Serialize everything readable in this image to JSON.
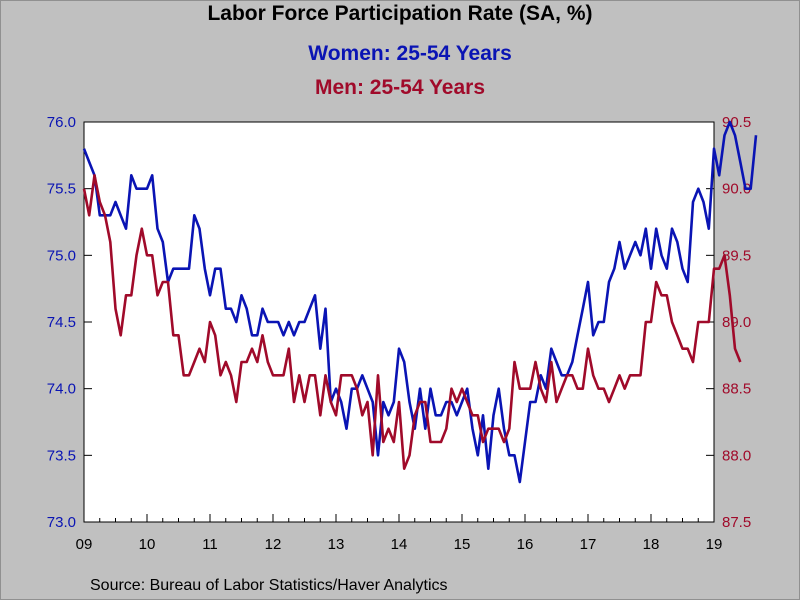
{
  "title": "Labor Force Participation Rate (SA, %)",
  "subtitle_women": "Women: 25-54 Years",
  "subtitle_men": "Men: 25-54 Years",
  "source": "Source:  Bureau of Labor Statistics/Haver Analytics",
  "colors": {
    "women": "#0a14b4",
    "men": "#a00a2a",
    "plot_bg": "#ffffff",
    "background": "#c0c0c0"
  },
  "chart_data": {
    "type": "line",
    "x_ticks": [
      "09",
      "10",
      "11",
      "12",
      "13",
      "14",
      "15",
      "16",
      "17",
      "18",
      "19"
    ],
    "x_range": [
      2009.0,
      2019.0
    ],
    "y_left": {
      "range": [
        73.0,
        76.0
      ],
      "ticks": [
        "73.0",
        "73.5",
        "74.0",
        "74.5",
        "75.0",
        "75.5",
        "76.0"
      ]
    },
    "y_right": {
      "range": [
        87.5,
        90.5
      ],
      "ticks": [
        "87.5",
        "88.0",
        "88.5",
        "89.0",
        "89.5",
        "90.0",
        "90.5"
      ]
    },
    "grid": false,
    "series": [
      {
        "name": "Women: 25-54 Years",
        "axis": "left",
        "start": "2009-01",
        "frequency": "monthly",
        "values": [
          75.8,
          75.7,
          75.6,
          75.3,
          75.3,
          75.3,
          75.4,
          75.3,
          75.2,
          75.6,
          75.5,
          75.5,
          75.5,
          75.6,
          75.2,
          75.1,
          74.8,
          74.9,
          74.9,
          74.9,
          74.9,
          75.3,
          75.2,
          74.9,
          74.7,
          74.9,
          74.9,
          74.6,
          74.6,
          74.5,
          74.7,
          74.6,
          74.4,
          74.4,
          74.6,
          74.5,
          74.5,
          74.5,
          74.4,
          74.5,
          74.4,
          74.5,
          74.5,
          74.6,
          74.7,
          74.3,
          74.6,
          73.9,
          74.0,
          73.9,
          73.7,
          74.0,
          74.0,
          74.1,
          74.0,
          73.9,
          73.5,
          73.9,
          73.8,
          73.9,
          74.3,
          74.2,
          73.9,
          73.7,
          74.0,
          73.7,
          74.0,
          73.8,
          73.8,
          73.9,
          73.9,
          73.8,
          73.9,
          74.0,
          73.7,
          73.5,
          73.8,
          73.4,
          73.8,
          74.0,
          73.7,
          73.5,
          73.5,
          73.3,
          73.6,
          73.9,
          73.9,
          74.1,
          74.0,
          74.3,
          74.2,
          74.1,
          74.1,
          74.2,
          74.4,
          74.6,
          74.8,
          74.4,
          74.5,
          74.5,
          74.8,
          74.9,
          75.1,
          74.9,
          75.0,
          75.1,
          75.0,
          75.2,
          74.9,
          75.2,
          75.0,
          74.9,
          75.2,
          75.1,
          74.9,
          74.8,
          75.4,
          75.5,
          75.4,
          75.2,
          75.8,
          75.6,
          75.9,
          76.0,
          75.9,
          75.7,
          75.5,
          75.5,
          75.9
        ]
      },
      {
        "name": "Men: 25-54 Years",
        "axis": "right",
        "start": "2009-01",
        "frequency": "monthly",
        "values": [
          90.0,
          89.8,
          90.1,
          89.9,
          89.8,
          89.6,
          89.1,
          88.9,
          89.2,
          89.2,
          89.5,
          89.7,
          89.5,
          89.5,
          89.2,
          89.3,
          89.3,
          88.9,
          88.9,
          88.6,
          88.6,
          88.7,
          88.8,
          88.7,
          89.0,
          88.9,
          88.6,
          88.7,
          88.6,
          88.4,
          88.7,
          88.7,
          88.8,
          88.7,
          88.9,
          88.7,
          88.6,
          88.6,
          88.6,
          88.8,
          88.4,
          88.6,
          88.4,
          88.6,
          88.6,
          88.3,
          88.6,
          88.4,
          88.3,
          88.6,
          88.6,
          88.6,
          88.5,
          88.3,
          88.4,
          88.0,
          88.6,
          88.1,
          88.2,
          88.1,
          88.4,
          87.9,
          88.0,
          88.3,
          88.4,
          88.4,
          88.1,
          88.1,
          88.1,
          88.2,
          88.5,
          88.4,
          88.5,
          88.4,
          88.3,
          88.3,
          88.1,
          88.2,
          88.2,
          88.2,
          88.1,
          88.2,
          88.7,
          88.5,
          88.5,
          88.5,
          88.7,
          88.5,
          88.4,
          88.7,
          88.4,
          88.5,
          88.6,
          88.6,
          88.5,
          88.5,
          88.8,
          88.6,
          88.5,
          88.5,
          88.4,
          88.5,
          88.6,
          88.5,
          88.6,
          88.6,
          88.6,
          89.0,
          89.0,
          89.3,
          89.2,
          89.2,
          89.0,
          88.9,
          88.8,
          88.8,
          88.7,
          89.0,
          89.0,
          89.0,
          89.4,
          89.4,
          89.5,
          89.2,
          88.8,
          88.7
        ]
      }
    ]
  }
}
